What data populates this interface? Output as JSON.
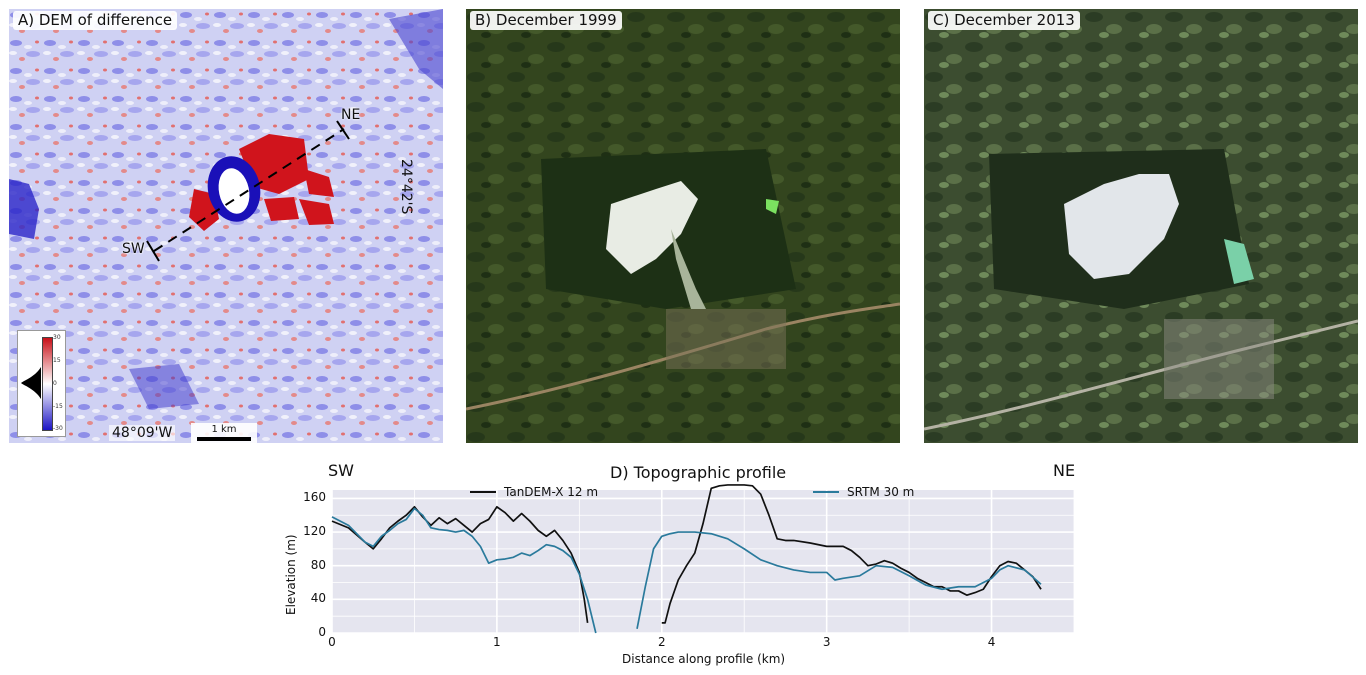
{
  "panels": {
    "a": {
      "label": "A) DEM of difference",
      "lon": "48°09'W",
      "lat": "24°42'S",
      "scalebar": "1 km",
      "sw": "SW",
      "ne": "NE",
      "colorbar": {
        "ticks": [
          "30",
          "15",
          "0",
          "-15",
          "-30"
        ],
        "colors": {
          "high": "#c81018",
          "mid": "#ffffff",
          "low": "#1c14c4"
        }
      }
    },
    "b": {
      "label": "B) December 1999"
    },
    "c": {
      "label": "C) December 2013"
    }
  },
  "chart_data": {
    "type": "line",
    "title": "D) Topographic profile",
    "corner_left": "SW",
    "corner_right": "NE",
    "xlabel": "Distance along profile (km)",
    "ylabel": "Elevation (m)",
    "xlim": [
      0,
      4.5
    ],
    "ylim": [
      0,
      170
    ],
    "xticks": [
      "0",
      "1",
      "2",
      "3",
      "4"
    ],
    "yticks": [
      "0",
      "40",
      "80",
      "120",
      "160"
    ],
    "grid": true,
    "background": "#e5e5ef",
    "legend": "top",
    "series": [
      {
        "name": "TanDEM-X 12 m",
        "color": "#111111",
        "segments": [
          [
            [
              0,
              133
            ],
            [
              0.1,
              125
            ],
            [
              0.2,
              108
            ],
            [
              0.25,
              100
            ],
            [
              0.3,
              112
            ],
            [
              0.35,
              125
            ],
            [
              0.4,
              133
            ],
            [
              0.45,
              140
            ],
            [
              0.5,
              150
            ],
            [
              0.55,
              138
            ],
            [
              0.6,
              128
            ],
            [
              0.65,
              137
            ],
            [
              0.7,
              130
            ],
            [
              0.75,
              136
            ],
            [
              0.8,
              128
            ],
            [
              0.85,
              120
            ],
            [
              0.9,
              130
            ],
            [
              0.95,
              135
            ],
            [
              1.0,
              150
            ],
            [
              1.05,
              143
            ],
            [
              1.1,
              133
            ],
            [
              1.15,
              142
            ],
            [
              1.2,
              133
            ],
            [
              1.25,
              122
            ],
            [
              1.3,
              115
            ],
            [
              1.35,
              122
            ],
            [
              1.4,
              110
            ],
            [
              1.45,
              95
            ],
            [
              1.5,
              72
            ],
            [
              1.53,
              40
            ],
            [
              1.55,
              12
            ]
          ],
          [
            [
              2.0,
              12
            ],
            [
              2.02,
              12
            ],
            [
              2.05,
              35
            ],
            [
              2.1,
              63
            ],
            [
              2.15,
              80
            ],
            [
              2.2,
              95
            ],
            [
              2.25,
              130
            ],
            [
              2.3,
              172
            ],
            [
              2.35,
              175
            ],
            [
              2.4,
              177
            ],
            [
              2.5,
              178
            ],
            [
              2.55,
              175
            ],
            [
              2.6,
              165
            ],
            [
              2.65,
              140
            ],
            [
              2.7,
              112
            ],
            [
              2.75,
              110
            ],
            [
              2.8,
              110
            ],
            [
              2.9,
              107
            ],
            [
              3.0,
              103
            ],
            [
              3.1,
              103
            ],
            [
              3.15,
              98
            ],
            [
              3.2,
              90
            ],
            [
              3.25,
              80
            ],
            [
              3.3,
              82
            ],
            [
              3.35,
              86
            ],
            [
              3.4,
              83
            ],
            [
              3.45,
              77
            ],
            [
              3.5,
              72
            ],
            [
              3.55,
              65
            ],
            [
              3.6,
              60
            ],
            [
              3.65,
              55
            ],
            [
              3.7,
              55
            ],
            [
              3.75,
              50
            ],
            [
              3.8,
              50
            ],
            [
              3.85,
              45
            ],
            [
              3.9,
              48
            ],
            [
              3.95,
              52
            ],
            [
              4.0,
              67
            ],
            [
              4.05,
              80
            ],
            [
              4.1,
              85
            ],
            [
              4.15,
              83
            ],
            [
              4.2,
              75
            ],
            [
              4.25,
              67
            ],
            [
              4.3,
              52
            ]
          ]
        ]
      },
      {
        "name": "SRTM 30 m",
        "color": "#2a7a9c",
        "segments": [
          [
            [
              0,
              138
            ],
            [
              0.1,
              128
            ],
            [
              0.2,
              108
            ],
            [
              0.25,
              103
            ],
            [
              0.3,
              115
            ],
            [
              0.35,
              122
            ],
            [
              0.4,
              130
            ],
            [
              0.45,
              135
            ],
            [
              0.5,
              148
            ],
            [
              0.55,
              140
            ],
            [
              0.6,
              125
            ],
            [
              0.65,
              123
            ],
            [
              0.7,
              122
            ],
            [
              0.75,
              120
            ],
            [
              0.8,
              122
            ],
            [
              0.85,
              115
            ],
            [
              0.9,
              103
            ],
            [
              0.95,
              83
            ],
            [
              1.0,
              87
            ],
            [
              1.05,
              88
            ],
            [
              1.1,
              90
            ],
            [
              1.15,
              95
            ],
            [
              1.2,
              92
            ],
            [
              1.25,
              98
            ],
            [
              1.3,
              105
            ],
            [
              1.35,
              103
            ],
            [
              1.4,
              98
            ],
            [
              1.45,
              90
            ],
            [
              1.5,
              70
            ],
            [
              1.55,
              40
            ],
            [
              1.6,
              0
            ]
          ],
          [
            [
              1.85,
              5
            ],
            [
              1.9,
              55
            ],
            [
              1.95,
              100
            ],
            [
              2.0,
              115
            ],
            [
              2.05,
              118
            ],
            [
              2.1,
              120
            ],
            [
              2.2,
              120
            ],
            [
              2.3,
              118
            ],
            [
              2.4,
              112
            ],
            [
              2.5,
              100
            ],
            [
              2.6,
              87
            ],
            [
              2.7,
              80
            ],
            [
              2.8,
              75
            ],
            [
              2.9,
              72
            ],
            [
              3.0,
              72
            ],
            [
              3.05,
              63
            ],
            [
              3.1,
              65
            ],
            [
              3.2,
              68
            ],
            [
              3.3,
              80
            ],
            [
              3.4,
              78
            ],
            [
              3.5,
              68
            ],
            [
              3.6,
              57
            ],
            [
              3.7,
              52
            ],
            [
              3.8,
              55
            ],
            [
              3.9,
              55
            ],
            [
              4.0,
              65
            ],
            [
              4.05,
              75
            ],
            [
              4.1,
              80
            ],
            [
              4.2,
              75
            ],
            [
              4.3,
              58
            ]
          ]
        ]
      }
    ]
  }
}
